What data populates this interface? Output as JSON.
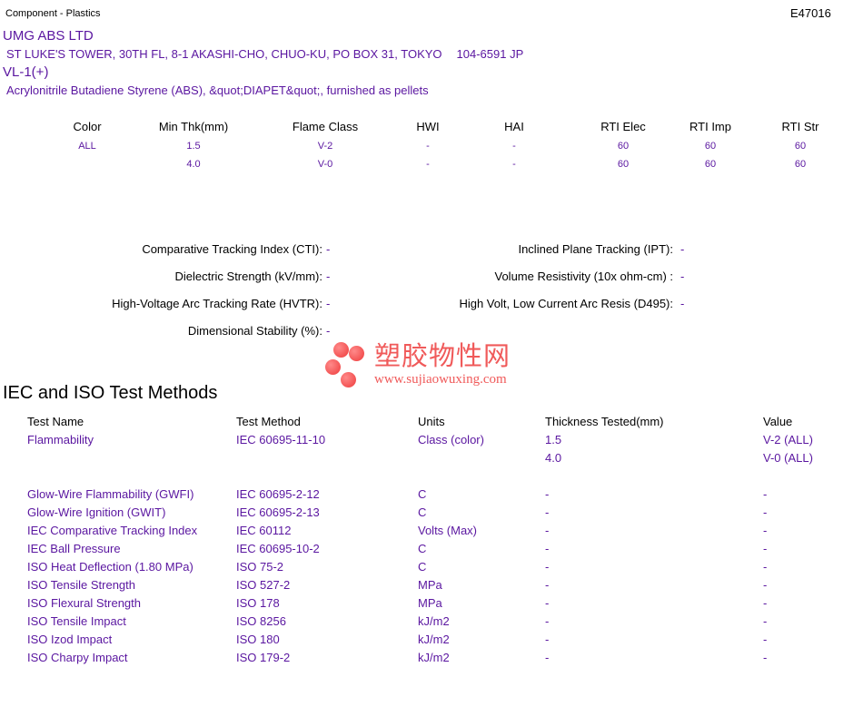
{
  "header": {
    "category": "Component - Plastics",
    "file_number": "E47016"
  },
  "company": {
    "name": "UMG ABS LTD",
    "address": "ST LUKE'S TOWER, 30TH FL, 8-1 AKASHI-CHO, CHUO-KU, PO BOX 31, TOKYO",
    "postal": "104-6591 JP"
  },
  "product": {
    "grade": "VL-1(+)",
    "description": "Acrylonitrile Butadiene Styrene (ABS), &quot;DIAPET&quot;, furnished as pellets"
  },
  "ratings": {
    "columns": [
      "Color",
      "Min Thk(mm)",
      "Flame Class",
      "HWI",
      "HAI",
      "RTI Elec",
      "RTI Imp",
      "RTI Str"
    ],
    "rows": [
      [
        "ALL",
        "1.5",
        "V-2",
        "-",
        "-",
        "60",
        "60",
        "60"
      ],
      [
        "",
        "4.0",
        "V-0",
        "-",
        "-",
        "60",
        "60",
        "60"
      ]
    ]
  },
  "properties": {
    "left": [
      {
        "label": "Comparative Tracking Index (CTI):",
        "value": "-"
      },
      {
        "label": "Dielectric Strength (kV/mm):",
        "value": "-"
      },
      {
        "label": "High-Voltage Arc Tracking Rate (HVTR):",
        "value": "-"
      },
      {
        "label": "Dimensional Stability (%):",
        "value": "-"
      }
    ],
    "right": [
      {
        "label": "Inclined Plane Tracking (IPT):",
        "value": "-"
      },
      {
        "label": "Volume Resistivity (10x ohm-cm) :",
        "value": "-"
      },
      {
        "label": "High Volt, Low Current Arc Resis (D495):",
        "value": "-"
      }
    ]
  },
  "watermark": {
    "text": "塑胶物性网",
    "url": "www.sujiaowuxing.com"
  },
  "iec": {
    "title": "IEC and ISO Test Methods",
    "columns": [
      "Test Name",
      "Test Method",
      "Units",
      "Thickness Tested(mm)",
      "Value"
    ],
    "rows": [
      [
        "Flammability",
        "IEC 60695-11-10",
        "Class (color)",
        "1.5",
        "V-2 (ALL)"
      ],
      [
        "",
        "",
        "",
        "4.0",
        "V-0 (ALL)"
      ],
      [
        "",
        "",
        "",
        "",
        ""
      ],
      [
        "Glow-Wire Flammability (GWFI)",
        "IEC 60695-2-12",
        "C",
        "-",
        "-"
      ],
      [
        "Glow-Wire Ignition (GWIT)",
        "IEC 60695-2-13",
        "C",
        "-",
        "-"
      ],
      [
        "IEC Comparative Tracking Index",
        "IEC 60112",
        "Volts (Max)",
        "-",
        "-"
      ],
      [
        "IEC Ball Pressure",
        "IEC 60695-10-2",
        "C",
        "-",
        "-"
      ],
      [
        "ISO Heat Deflection (1.80 MPa)",
        "ISO 75-2",
        "C",
        "-",
        "-"
      ],
      [
        "ISO Tensile Strength",
        "ISO 527-2",
        "MPa",
        "-",
        "-"
      ],
      [
        "ISO Flexural Strength",
        "ISO 178",
        "MPa",
        "-",
        "-"
      ],
      [
        "ISO Tensile Impact",
        "ISO 8256",
        "kJ/m2",
        "-",
        "-"
      ],
      [
        "ISO Izod Impact",
        "ISO 180",
        "kJ/m2",
        "-",
        "-"
      ],
      [
        "ISO Charpy Impact",
        "ISO 179-2",
        "kJ/m2",
        "-",
        "-"
      ]
    ]
  }
}
